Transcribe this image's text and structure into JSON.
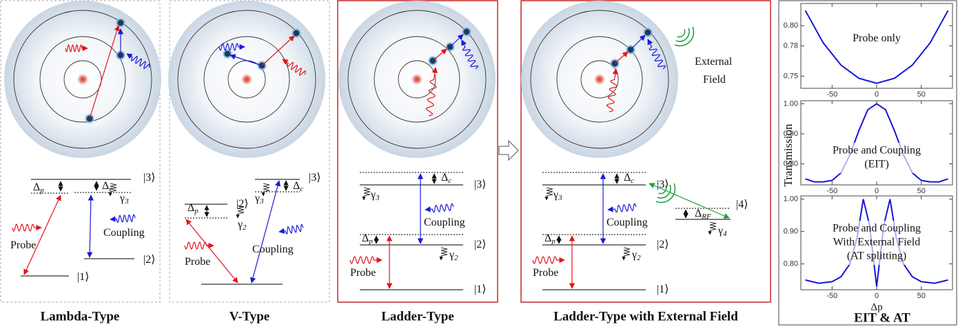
{
  "panels": [
    {
      "caption": "Lambda-Type",
      "labels": [
        {
          "text": "|3⟩"
        },
        {
          "text": "|2⟩"
        },
        {
          "text": "|1⟩"
        },
        {
          "text": "Δ",
          "sub": "p"
        },
        {
          "text": "Δ",
          "sub": "c"
        },
        {
          "text": "γ",
          "sub": "3"
        },
        {
          "text": "Probe"
        },
        {
          "text": "Coupling"
        }
      ]
    },
    {
      "caption": "V-Type",
      "labels": [
        {
          "text": "|3⟩"
        },
        {
          "text": "|2⟩"
        },
        {
          "text": "Δ",
          "sub": "p"
        },
        {
          "text": "Δ",
          "sub": "c"
        },
        {
          "text": "γ",
          "sub": "2"
        },
        {
          "text": "γ",
          "sub": "3"
        },
        {
          "text": "Probe"
        },
        {
          "text": "Coupling"
        }
      ]
    },
    {
      "caption": "Ladder-Type",
      "labels": [
        {
          "text": "|3⟩"
        },
        {
          "text": "|2⟩"
        },
        {
          "text": "|1⟩"
        },
        {
          "text": "Δ",
          "sub": "c"
        },
        {
          "text": "γ",
          "sub": "3"
        },
        {
          "text": "Δ",
          "sub": "p"
        },
        {
          "text": "γ",
          "sub": "2"
        },
        {
          "text": "Coupling"
        },
        {
          "text": "Probe"
        }
      ]
    },
    {
      "caption": "Ladder-Type with External Field",
      "labels": [
        {
          "text": "|3⟩"
        },
        {
          "text": "|2⟩"
        },
        {
          "text": "|1⟩"
        },
        {
          "text": "Δ",
          "sub": "c"
        },
        {
          "text": "γ",
          "sub": "3"
        },
        {
          "text": "Δ",
          "sub": "p"
        },
        {
          "text": "γ",
          "sub": "2"
        },
        {
          "text": "Coupling"
        },
        {
          "text": "Probe"
        },
        {
          "text": "|4⟩"
        },
        {
          "text": "Δ",
          "sub": "RF"
        },
        {
          "text": "γ",
          "sub": "4"
        },
        {
          "text": "External"
        },
        {
          "text": "Field"
        }
      ]
    }
  ],
  "eit_panel": {
    "caption": "EIT & AT",
    "y_label": "Transmission",
    "x_label": "Δp"
  },
  "chart_data": [
    {
      "type": "line",
      "annotation": [
        "Probe only"
      ],
      "color": "#1515d6",
      "x": [
        -80,
        -60,
        -40,
        -20,
        0,
        20,
        40,
        60,
        80
      ],
      "values": [
        0.815,
        0.783,
        0.761,
        0.748,
        0.743,
        0.748,
        0.761,
        0.783,
        0.815
      ],
      "xlim": [
        -85,
        85
      ],
      "xticks": [
        -50,
        0,
        50
      ],
      "ylim": [
        0.738,
        0.822
      ],
      "yticks": [
        {
          "value": 0.8,
          "label": "0.80"
        },
        0.78,
        0.75
      ]
    },
    {
      "type": "line",
      "annotation": [
        "Probe and Coupling",
        "(EIT)"
      ],
      "color": "#1515d6",
      "x": [
        -80,
        -70,
        -60,
        -50,
        -40,
        -30,
        -20,
        -10,
        0,
        10,
        20,
        30,
        40,
        50,
        60,
        70,
        80
      ],
      "values": [
        0.75,
        0.74,
        0.74,
        0.745,
        0.77,
        0.83,
        0.91,
        0.98,
        1.0,
        0.98,
        0.91,
        0.83,
        0.77,
        0.745,
        0.74,
        0.74,
        0.75
      ],
      "xlim": [
        -85,
        85
      ],
      "xticks": [
        -50,
        0,
        50
      ],
      "ylim": [
        0.73,
        1.01
      ],
      "yticks": [
        {
          "value": 1.0,
          "label": "1.00"
        },
        {
          "value": 0.9,
          "label": "0.90"
        },
        {
          "value": 0.8,
          "label": "0.80"
        }
      ]
    },
    {
      "type": "line",
      "annotation": [
        "Probe and Coupling",
        "With External Field",
        "(AT splitting)"
      ],
      "color": "#1515d6",
      "x": [
        -80,
        -65,
        -50,
        -40,
        -30,
        -22,
        -15,
        -8,
        0,
        8,
        15,
        22,
        30,
        40,
        50,
        65,
        80
      ],
      "values": [
        0.75,
        0.74,
        0.745,
        0.76,
        0.8,
        0.88,
        1.0,
        0.92,
        0.73,
        0.92,
        1.0,
        0.88,
        0.8,
        0.76,
        0.745,
        0.74,
        0.75
      ],
      "xlim": [
        -85,
        85
      ],
      "xticks": [
        -50,
        0,
        50
      ],
      "ylim": [
        0.72,
        1.01
      ],
      "yticks": [
        {
          "value": 1.0,
          "label": "1.00"
        },
        {
          "value": 0.9,
          "label": "0.90"
        },
        {
          "value": 0.8,
          "label": "0.80"
        }
      ]
    }
  ]
}
